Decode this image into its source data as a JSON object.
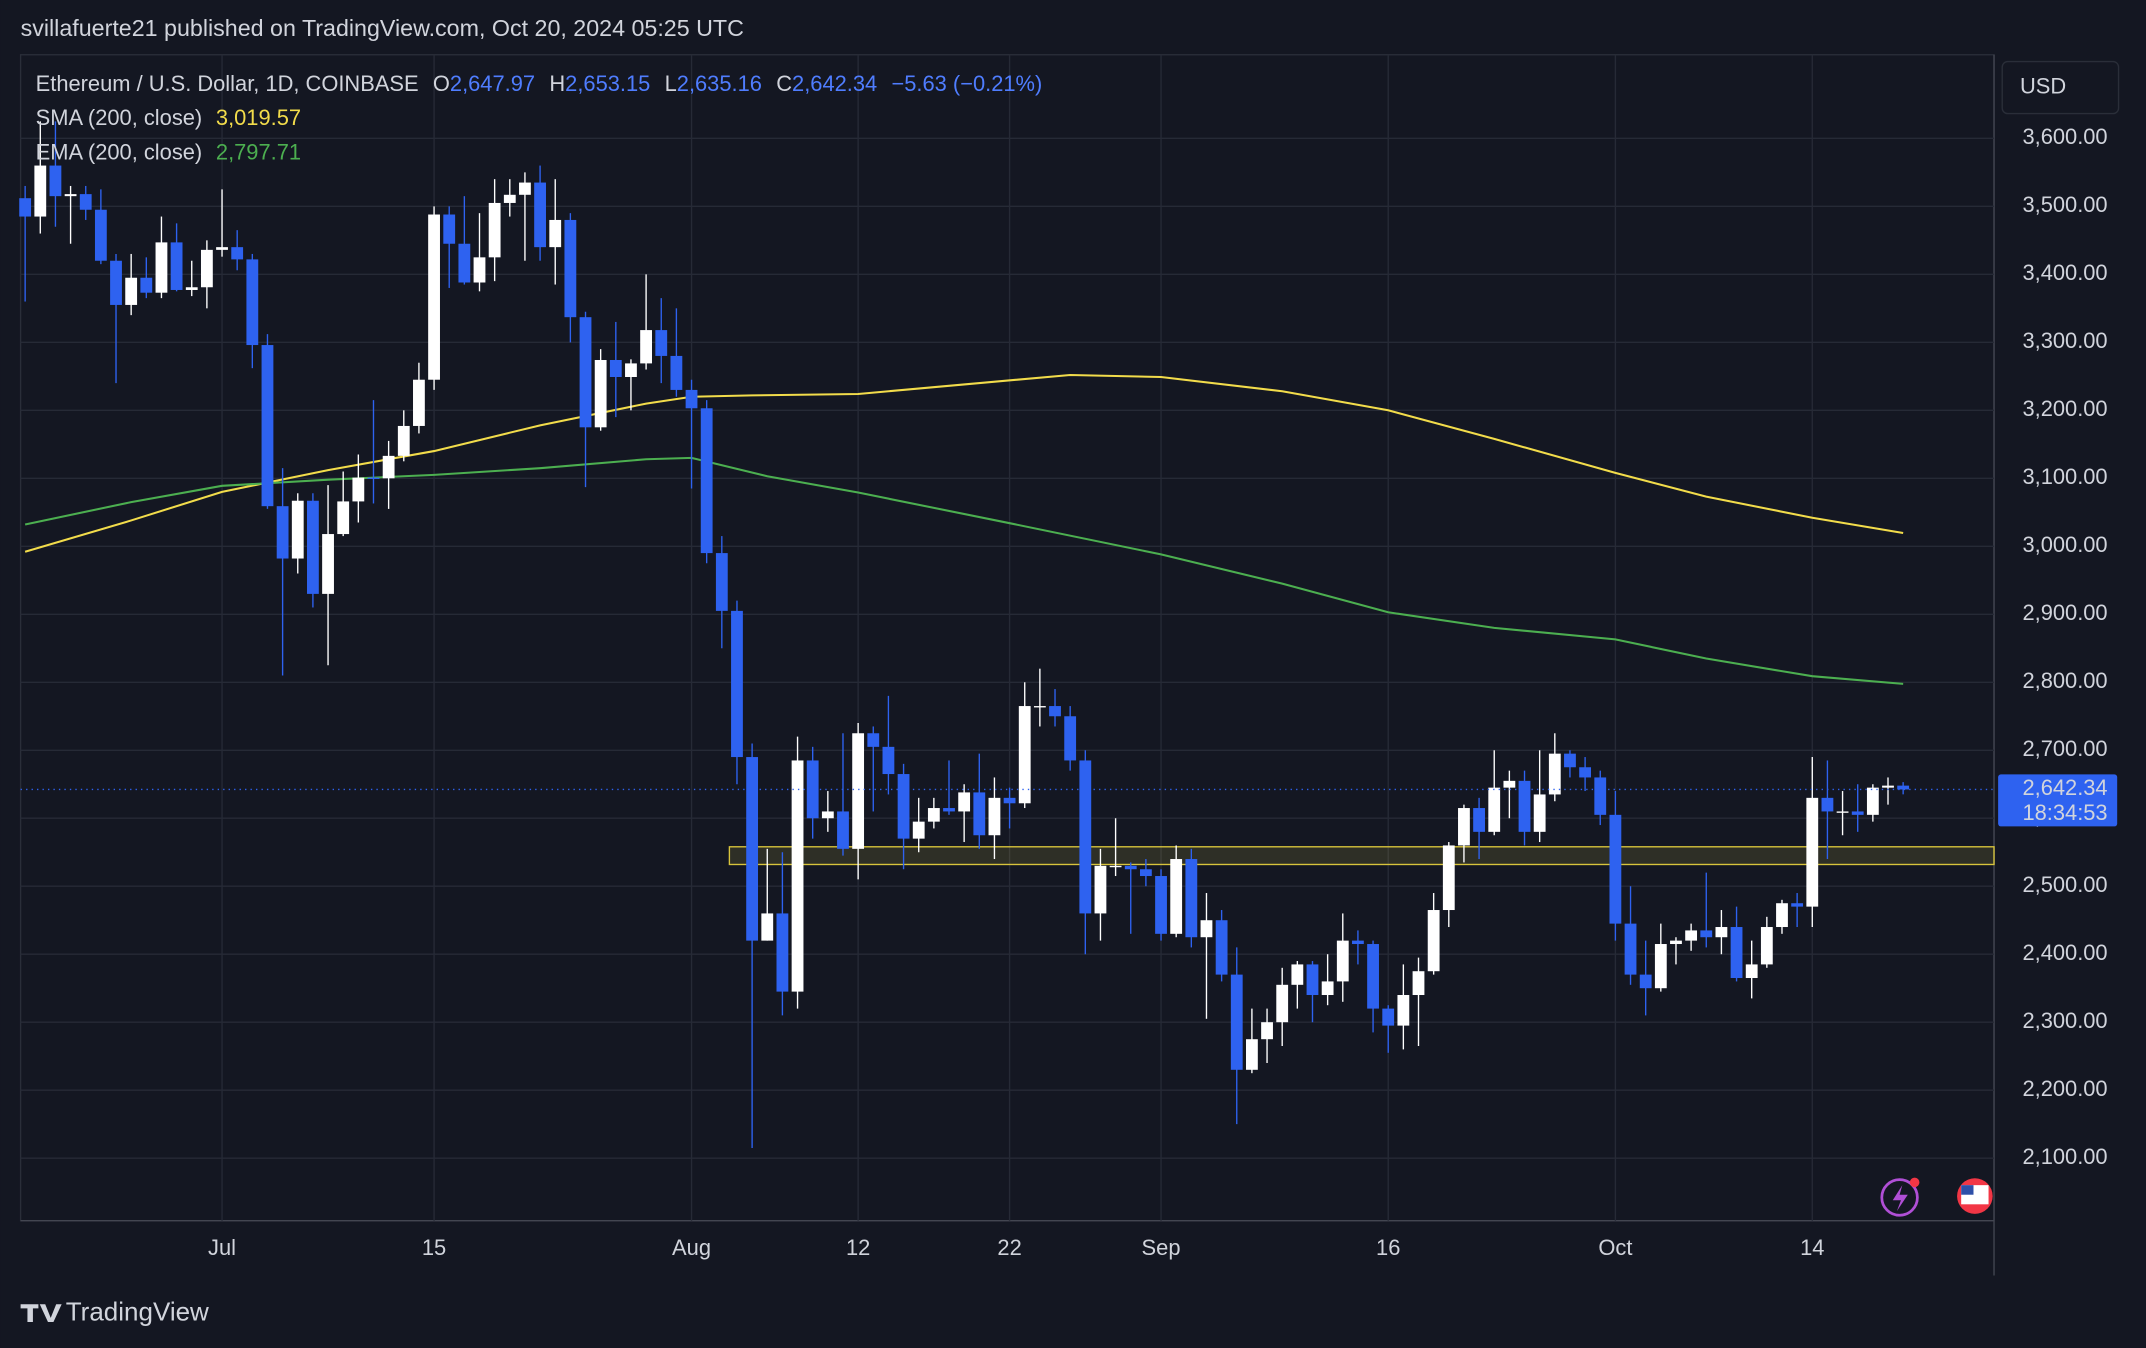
{
  "header": {
    "publisher": "svillafuerte21 published on TradingView.com, Oct 20, 2024 05:25 UTC",
    "brand": "TradingView"
  },
  "chart_data": {
    "type": "candlestick",
    "currency": "USD",
    "legend": {
      "symbol": "Ethereum / U.S. Dollar, 1D, COINBASE",
      "o": "O",
      "open": "2,647.97",
      "h": "H",
      "high": "2,653.15",
      "l": "L",
      "low": "2,635.16",
      "c": "C",
      "close": "2,642.34",
      "change": "−5.63 (−0.21%)"
    },
    "up_color": "#ffffff",
    "down_color": "#2e62f0",
    "x": [
      -13,
      -12,
      -11,
      -10,
      -9,
      -8,
      -7,
      -6,
      -5,
      -4,
      -3,
      -2,
      -1,
      0,
      1,
      2,
      3,
      4,
      5,
      6,
      7,
      8,
      9,
      10,
      11,
      12,
      13,
      14,
      15,
      16,
      17,
      18,
      19,
      20,
      21,
      22,
      23,
      24,
      25,
      26,
      27,
      28,
      29,
      30,
      31,
      32,
      33,
      34,
      35,
      36,
      37,
      38,
      39,
      40,
      41,
      42,
      43,
      44,
      45,
      46,
      47,
      48,
      49,
      50,
      51,
      52,
      53,
      54,
      55,
      56,
      57,
      58,
      59,
      60,
      61,
      62,
      63,
      64,
      65,
      66,
      67,
      68,
      69,
      70,
      71,
      72,
      73,
      74,
      75,
      76,
      77,
      78,
      79,
      80,
      81,
      82,
      83,
      84,
      85,
      86,
      87,
      88,
      89,
      90,
      91,
      92,
      93,
      94,
      95,
      96,
      97,
      98,
      99,
      100,
      101,
      102,
      103,
      104,
      105,
      106,
      107,
      108,
      109,
      110,
      111
    ],
    "open": [
      3512,
      3485,
      3560,
      3515,
      3518,
      3495,
      3420,
      3355,
      3395,
      3373,
      3447,
      3377,
      3381,
      3436,
      3440,
      3422,
      3296,
      3059,
      2982,
      3067,
      2930,
      3018,
      3066,
      3101,
      3100,
      3133,
      3177,
      3245,
      3488,
      3445,
      3388,
      3425,
      3505,
      3517,
      3535,
      3440,
      3480,
      3337,
      3175,
      3274,
      3249,
      3269,
      3318,
      3280,
      3230,
      3203,
      2990,
      2905,
      2690,
      2420,
      2460,
      2345,
      2685,
      2600,
      2610,
      2555,
      2725,
      2705,
      2665,
      2570,
      2595,
      2615,
      2610,
      2638,
      2575,
      2630,
      2622,
      2765,
      2765,
      2750,
      2685,
      2460,
      2530,
      2530,
      2525,
      2515,
      2430,
      2540,
      2425,
      2450,
      2370,
      2230,
      2275,
      2300,
      2355,
      2385,
      2340,
      2360,
      2420,
      2415,
      2320,
      2295,
      2340,
      2375,
      2465,
      2560,
      2615,
      2580,
      2645,
      2655,
      2580,
      2635,
      2695,
      2675,
      2660,
      2605,
      2445,
      2370,
      2350,
      2415,
      2420,
      2435,
      2425,
      2440,
      2365,
      2385,
      2440,
      2475,
      2470,
      2630,
      2610,
      2610,
      2605,
      2645,
      2647.97
    ],
    "high": [
      3530,
      3625,
      3625,
      3530,
      3530,
      3525,
      3430,
      3430,
      3425,
      3485,
      3475,
      3420,
      3450,
      3525,
      3465,
      3430,
      3312,
      3115,
      3078,
      3078,
      3090,
      3110,
      3135,
      3215,
      3155,
      3200,
      3270,
      3500,
      3500,
      3515,
      3490,
      3540,
      3540,
      3550,
      3560,
      3540,
      3490,
      3345,
      3290,
      3330,
      3275,
      3400,
      3365,
      3350,
      3245,
      3215,
      3015,
      2920,
      2710,
      2555,
      2550,
      2720,
      2705,
      2640,
      2725,
      2740,
      2735,
      2780,
      2680,
      2630,
      2630,
      2685,
      2650,
      2695,
      2660,
      2645,
      2800,
      2820,
      2790,
      2765,
      2700,
      2555,
      2600,
      2535,
      2540,
      2525,
      2560,
      2555,
      2490,
      2465,
      2410,
      2320,
      2320,
      2380,
      2390,
      2390,
      2400,
      2460,
      2435,
      2420,
      2325,
      2385,
      2395,
      2490,
      2565,
      2620,
      2630,
      2700,
      2670,
      2670,
      2700,
      2725,
      2700,
      2690,
      2670,
      2640,
      2500,
      2420,
      2445,
      2425,
      2445,
      2520,
      2465,
      2470,
      2420,
      2455,
      2480,
      2490,
      2690,
      2685,
      2640,
      2650,
      2650,
      2660,
      2653.15
    ],
    "low": [
      3360,
      3460,
      3470,
      3445,
      3480,
      3415,
      3240,
      3340,
      3365,
      3365,
      3375,
      3368,
      3350,
      3426,
      3406,
      3262,
      3055,
      2810,
      2960,
      2910,
      2825,
      3015,
      3035,
      3063,
      3055,
      3125,
      3166,
      3230,
      3380,
      3385,
      3375,
      3390,
      3485,
      3420,
      3420,
      3385,
      3300,
      3087,
      3170,
      3190,
      3200,
      3260,
      3240,
      3220,
      3085,
      2975,
      2850,
      2650,
      2115,
      2420,
      2310,
      2320,
      2570,
      2580,
      2545,
      2510,
      2610,
      2635,
      2525,
      2550,
      2585,
      2605,
      2565,
      2555,
      2540,
      2585,
      2615,
      2735,
      2735,
      2670,
      2400,
      2420,
      2515,
      2430,
      2500,
      2420,
      2425,
      2410,
      2305,
      2360,
      2150,
      2225,
      2240,
      2265,
      2320,
      2300,
      2325,
      2330,
      2385,
      2285,
      2255,
      2260,
      2265,
      2370,
      2440,
      2535,
      2540,
      2575,
      2600,
      2560,
      2565,
      2625,
      2660,
      2640,
      2590,
      2420,
      2355,
      2310,
      2345,
      2385,
      2405,
      2410,
      2400,
      2360,
      2335,
      2380,
      2430,
      2440,
      2440,
      2540,
      2575,
      2580,
      2595,
      2620,
      2635.16
    ],
    "close": [
      3485,
      3560,
      3515,
      3518,
      3495,
      3420,
      3355,
      3395,
      3373,
      3447,
      3377,
      3381,
      3436,
      3440,
      3422,
      3296,
      3059,
      2982,
      3067,
      2930,
      3018,
      3066,
      3101,
      3100,
      3133,
      3177,
      3245,
      3488,
      3445,
      3388,
      3425,
      3505,
      3517,
      3535,
      3440,
      3480,
      3337,
      3175,
      3274,
      3249,
      3269,
      3318,
      3280,
      3230,
      3203,
      2990,
      2905,
      2690,
      2420,
      2460,
      2345,
      2685,
      2600,
      2610,
      2555,
      2725,
      2705,
      2665,
      2570,
      2595,
      2615,
      2610,
      2638,
      2575,
      2630,
      2622,
      2765,
      2765,
      2750,
      2685,
      2460,
      2530,
      2530,
      2525,
      2515,
      2430,
      2540,
      2425,
      2450,
      2370,
      2230,
      2275,
      2300,
      2355,
      2385,
      2340,
      2360,
      2420,
      2415,
      2320,
      2295,
      2340,
      2375,
      2465,
      2560,
      2615,
      2580,
      2645,
      2655,
      2580,
      2635,
      2695,
      2675,
      2660,
      2605,
      2445,
      2370,
      2350,
      2415,
      2420,
      2435,
      2425,
      2440,
      2365,
      2385,
      2440,
      2475,
      2470,
      2630,
      2610,
      2610,
      2605,
      2645,
      2647.97,
      2642.34
    ],
    "series": [
      {
        "name": "SMA (200, close)",
        "value_label": "3,019.57",
        "color": "#f2dc4b",
        "x": [
          -13,
          -6,
          0,
          7,
          14,
          21,
          28,
          31,
          35,
          42,
          49,
          56,
          62,
          70,
          77,
          84,
          92,
          98,
          105,
          111
        ],
        "values": [
          2992,
          3038,
          3080,
          3112,
          3140,
          3178,
          3210,
          3220,
          3222,
          3224,
          3238,
          3252,
          3249,
          3228,
          3200,
          3158,
          3108,
          3073,
          3042,
          3019.57
        ]
      },
      {
        "name": "EMA (200, close)",
        "value_label": "2,797.71",
        "color": "#4caf50",
        "x": [
          -13,
          -6,
          0,
          7,
          14,
          21,
          28,
          31,
          36,
          42,
          52,
          62,
          70,
          77,
          84,
          92,
          98,
          105,
          111
        ],
        "values": [
          3032,
          3065,
          3089,
          3098,
          3105,
          3115,
          3128,
          3130,
          3103,
          3079,
          3034,
          2988,
          2945,
          2903,
          2880,
          2863,
          2835,
          2809,
          2797.71
        ]
      }
    ],
    "zone": {
      "low": 2532,
      "high": 2558,
      "x_start": 34
    },
    "last_price": {
      "value": 2642.34,
      "label": "2,642.34",
      "countdown": "18:34:53"
    },
    "xlim": [
      -13.3,
      117
    ],
    "ylim": [
      2008,
      3723
    ],
    "xticks": [
      {
        "value": 0,
        "label": "Jul"
      },
      {
        "value": 14,
        "label": "15"
      },
      {
        "value": 31,
        "label": "Aug"
      },
      {
        "value": 42,
        "label": "12"
      },
      {
        "value": 52,
        "label": "22"
      },
      {
        "value": 62,
        "label": "Sep"
      },
      {
        "value": 77,
        "label": "16"
      },
      {
        "value": 92,
        "label": "Oct"
      },
      {
        "value": 105,
        "label": "14"
      }
    ],
    "yticks": [
      {
        "value": 2100,
        "label": "2,100.00"
      },
      {
        "value": 2200,
        "label": "2,200.00"
      },
      {
        "value": 2300,
        "label": "2,300.00"
      },
      {
        "value": 2400,
        "label": "2,400.00"
      },
      {
        "value": 2500,
        "label": "2,500.00"
      },
      {
        "value": 2600,
        "label": "2,600.00"
      },
      {
        "value": 2700,
        "label": "2,700.00"
      },
      {
        "value": 2800,
        "label": "2,800.00"
      },
      {
        "value": 2900,
        "label": "2,900.00"
      },
      {
        "value": 3000,
        "label": "3,000.00"
      },
      {
        "value": 3100,
        "label": "3,100.00"
      },
      {
        "value": 3200,
        "label": "3,200.00"
      },
      {
        "value": 3300,
        "label": "3,300.00"
      },
      {
        "value": 3400,
        "label": "3,400.00"
      },
      {
        "value": 3500,
        "label": "3,500.00"
      },
      {
        "value": 3600,
        "label": "3,600.00"
      }
    ],
    "grid": true
  }
}
